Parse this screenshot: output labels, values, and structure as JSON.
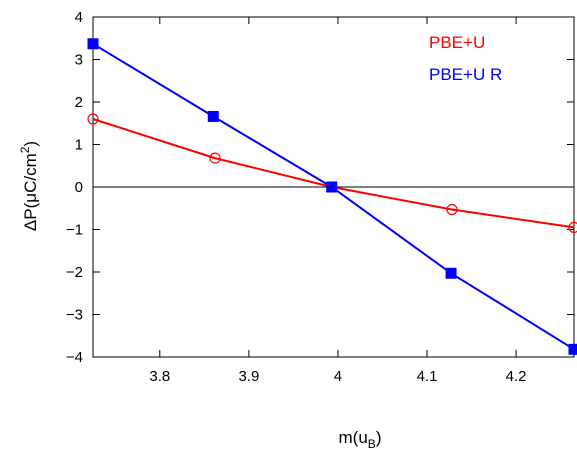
{
  "chart_data": {
    "type": "line",
    "title": "",
    "xlabel": {
      "text": "m(u",
      "sub": "B",
      "tail": ")"
    },
    "ylabel": {
      "text": "ΔP(μC/cm",
      "sup": "2",
      "tail": ")"
    },
    "xlim": [
      3.725,
      4.265
    ],
    "ylim": [
      -4,
      4
    ],
    "xticks": [
      3.8,
      3.9,
      4.0,
      4.1,
      4.2
    ],
    "xtick_labels": [
      "3.8",
      "3.9",
      "4",
      "4.1",
      "4.2"
    ],
    "yticks": [
      -4,
      -3,
      -2,
      -1,
      0,
      1,
      2,
      3,
      4
    ],
    "ytick_labels": [
      "−4",
      "−3",
      "−2",
      "−1",
      "0",
      "1",
      "2",
      "3",
      "4"
    ],
    "zero_line": true,
    "grid": false,
    "legend_position": "top-right",
    "series": [
      {
        "name": "PBE+U",
        "color": "#ff0000",
        "marker": "open-circle",
        "x": [
          3.725,
          3.862,
          3.993,
          4.128,
          4.265
        ],
        "y": [
          1.6,
          0.68,
          0.0,
          -0.53,
          -0.95
        ]
      },
      {
        "name": "PBE+U R",
        "color": "#0000ff",
        "marker": "filled-square",
        "x": [
          3.725,
          3.86,
          3.993,
          4.127,
          4.265
        ],
        "y": [
          3.37,
          1.66,
          0.0,
          -2.03,
          -3.82
        ]
      }
    ]
  }
}
